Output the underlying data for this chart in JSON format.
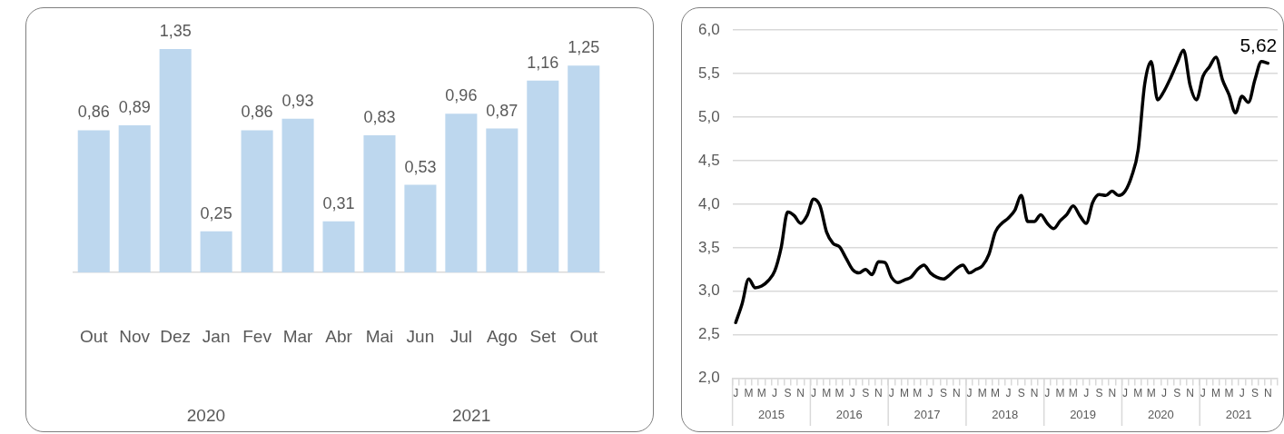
{
  "chart_data": [
    {
      "type": "bar",
      "categories": [
        "Out",
        "Nov",
        "Dez",
        "Jan",
        "Fev",
        "Mar",
        "Abr",
        "Mai",
        "Jun",
        "Jul",
        "Ago",
        "Set",
        "Out"
      ],
      "values": [
        0.86,
        0.89,
        1.35,
        0.25,
        0.86,
        0.93,
        0.31,
        0.83,
        0.53,
        0.96,
        0.87,
        1.16,
        1.25
      ],
      "value_labels": [
        "0,86",
        "0,89",
        "1,35",
        "0,25",
        "0,86",
        "0,93",
        "0,31",
        "0,83",
        "0,53",
        "0,96",
        "0,87",
        "1,16",
        "1,25"
      ],
      "color": "#bdd7ee",
      "tick_labels": "x",
      "legend": false,
      "annotations": [
        "2020",
        "2021"
      ]
    },
    {
      "type": "line",
      "categories": [
        "J",
        null,
        "M",
        null,
        "M",
        null,
        "J",
        null,
        "S",
        null,
        "N",
        null,
        "J",
        null,
        "M",
        null,
        "M",
        null,
        "J",
        null,
        "S",
        null,
        "N",
        null,
        "J",
        null,
        "M",
        null,
        "M",
        null,
        "J",
        null,
        "S",
        null,
        "N",
        null,
        "J",
        null,
        "M",
        null,
        "M",
        null,
        "J",
        null,
        "S",
        null,
        "N",
        null,
        "J",
        null,
        "M",
        null,
        "M",
        null,
        "J",
        null,
        "S",
        null,
        "N",
        null,
        "J",
        null,
        "M",
        null,
        "M",
        null,
        "J",
        null,
        "S",
        null,
        "N",
        null,
        "J",
        null,
        "M",
        null,
        "M",
        null,
        "J",
        null,
        "S",
        null,
        "N",
        null
      ],
      "values": [
        2.64,
        2.86,
        3.14,
        3.04,
        3.06,
        3.12,
        3.23,
        3.5,
        3.91,
        3.87,
        3.78,
        3.87,
        4.06,
        3.98,
        3.68,
        3.55,
        3.51,
        3.38,
        3.25,
        3.21,
        3.25,
        3.19,
        3.34,
        3.33,
        3.16,
        3.1,
        3.13,
        3.16,
        3.25,
        3.3,
        3.21,
        3.16,
        3.14,
        3.19,
        3.26,
        3.3,
        3.21,
        3.25,
        3.29,
        3.42,
        3.68,
        3.78,
        3.84,
        3.93,
        4.1,
        3.8,
        3.8,
        3.88,
        3.78,
        3.72,
        3.81,
        3.88,
        3.98,
        3.87,
        3.78,
        4.02,
        4.11,
        4.1,
        4.15,
        4.1,
        4.15,
        4.32,
        4.62,
        5.37,
        5.64,
        5.2,
        5.3,
        5.45,
        5.62,
        5.77,
        5.37,
        5.2,
        5.47,
        5.58,
        5.69,
        5.43,
        5.26,
        5.05,
        5.24,
        5.17,
        5.43,
        5.64,
        5.62,
        null
      ],
      "value_labels": [
        null,
        null,
        null,
        null,
        null,
        null,
        null,
        null,
        null,
        null,
        null,
        null,
        null,
        null,
        null,
        null,
        null,
        null,
        null,
        null,
        null,
        null,
        null,
        null,
        null,
        null,
        null,
        null,
        null,
        null,
        null,
        null,
        null,
        null,
        null,
        null,
        null,
        null,
        null,
        null,
        null,
        null,
        null,
        null,
        null,
        null,
        null,
        null,
        null,
        null,
        null,
        null,
        null,
        null,
        null,
        null,
        null,
        null,
        null,
        null,
        null,
        null,
        null,
        null,
        null,
        null,
        null,
        null,
        null,
        null,
        null,
        null,
        null,
        null,
        null,
        null,
        null,
        null,
        null,
        null,
        null,
        null,
        "5,62",
        null
      ],
      "color": "#000000",
      "marker": "none",
      "line_style": "solid",
      "grid": "y",
      "legend": false,
      "ylim": [
        2,
        6
      ],
      "yticks": [
        {
          "value": 2,
          "label": "2,0"
        },
        {
          "value": 2.5,
          "label": "2,5"
        },
        {
          "value": 3,
          "label": "3,0"
        },
        {
          "value": 3.5,
          "label": "3,5"
        },
        {
          "value": 4,
          "label": "4,0"
        },
        {
          "value": 4.5,
          "label": "4,5"
        },
        {
          "value": 5,
          "label": "5,0"
        },
        {
          "value": 5.5,
          "label": "5,5"
        },
        {
          "value": 6,
          "label": "6,0"
        }
      ],
      "annotations": [
        "2015",
        "2016",
        "2017",
        "2018",
        "2019",
        "2020",
        "2021"
      ]
    }
  ]
}
